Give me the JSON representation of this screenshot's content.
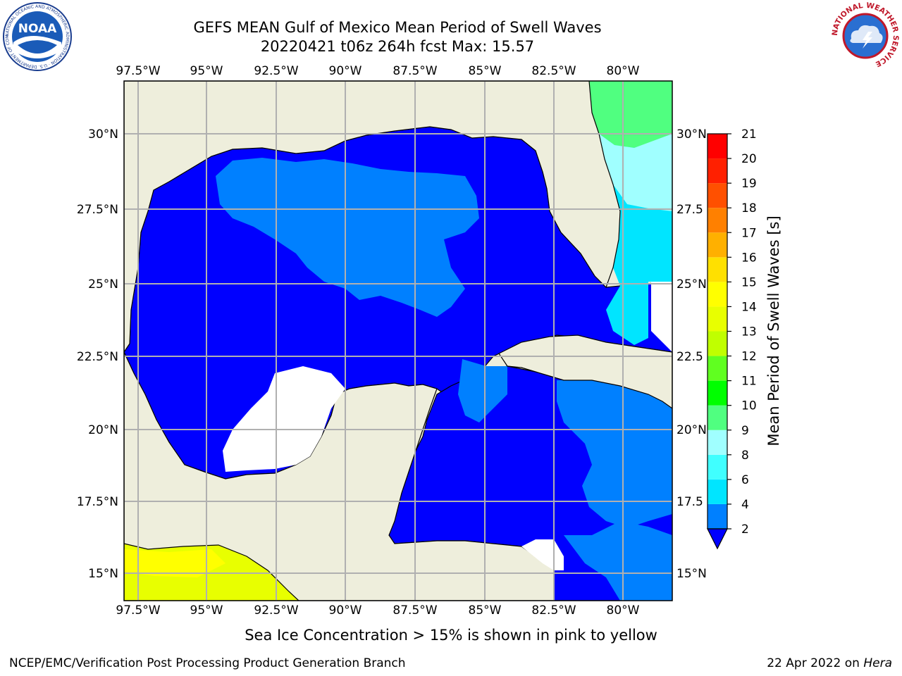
{
  "title": {
    "line1": "GEFS MEAN Gulf of Mexico Mean Period of Swell Waves",
    "line2": "20220421 t06z 264h fcst   Max: 15.57"
  },
  "map": {
    "lon_ticks": [
      "97.5°W",
      "95°W",
      "92.5°W",
      "90°W",
      "87.5°W",
      "85°W",
      "82.5°W",
      "80°W"
    ],
    "lat_ticks_left": [
      "30°N",
      "27.5°N",
      "25°N",
      "22.5°N",
      "20°N",
      "17.5°N",
      "15°N"
    ],
    "lat_ticks_right": [
      "30°N",
      "27.5",
      "25°N",
      "22.5",
      "20°N",
      "17.5",
      "15°N"
    ],
    "land_color": "#eeeedc",
    "grid_color": "#b0b0b0"
  },
  "colorbar": {
    "label": "Mean Period of Swell Waves [s]",
    "ticks": [
      "2",
      "4",
      "6",
      "8",
      "9",
      "10",
      "11",
      "12",
      "13",
      "14",
      "15",
      "16",
      "17",
      "18",
      "19",
      "20",
      "21"
    ],
    "colors": [
      "#0000ff",
      "#0080ff",
      "#00e5ff",
      "#40ffff",
      "#a0ffff",
      "#50ff80",
      "#00ff00",
      "#60ff20",
      "#c0ff00",
      "#e8ff00",
      "#ffff00",
      "#ffe000",
      "#ffb000",
      "#ff8000",
      "#ff5000",
      "#ff2000",
      "#ff0000"
    ]
  },
  "note": "Sea Ice Concentration > 15% is shown in pink to yellow",
  "footer": {
    "left": "NCEP/EMC/Verification Post Processing Product Generation Branch",
    "date": "22 Apr 2022 on ",
    "machine": "Hera"
  },
  "logos": {
    "noaa": "NOAA",
    "noaa_ring": "NATIONAL OCEANIC AND ATMOSPHERIC ADMINISTRATION · U.S. DEPARTMENT OF COMMERCE",
    "nws": "NATIONAL WEATHER SERVICE"
  }
}
